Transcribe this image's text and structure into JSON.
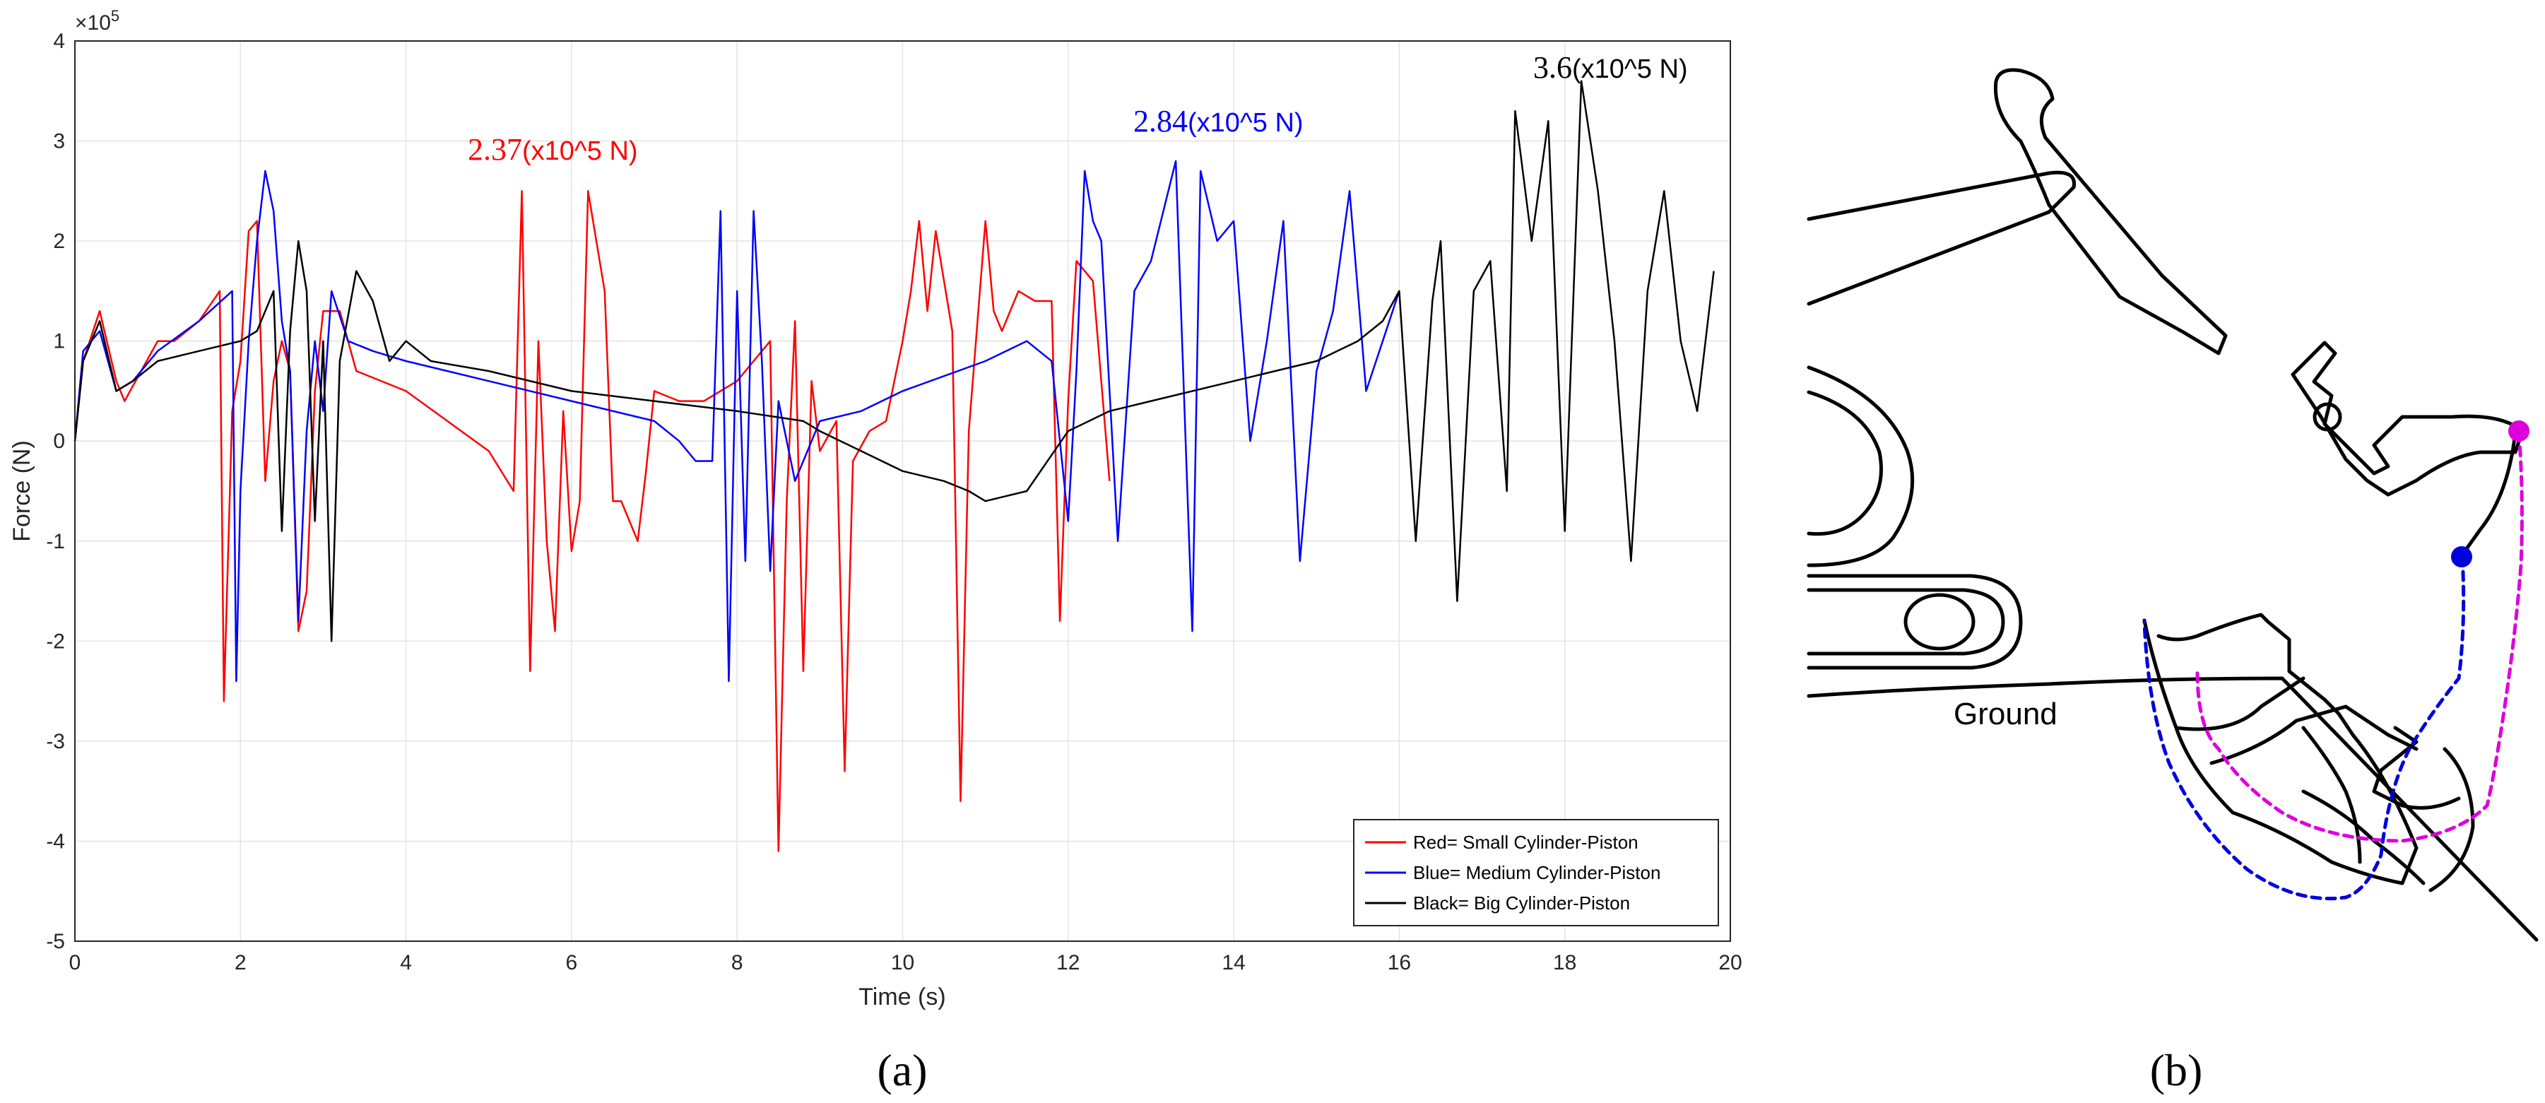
{
  "chart_data": {
    "type": "line",
    "xlabel": "Time (s)",
    "ylabel": "Force (N)",
    "xlim": [
      0,
      20
    ],
    "ylim": [
      -5,
      4
    ],
    "y_exponent_label": "×10",
    "y_exponent_power": "5",
    "grid": true,
    "xticks": [
      "0",
      "2",
      "4",
      "6",
      "8",
      "10",
      "12",
      "14",
      "16",
      "18",
      "20"
    ],
    "yticks": [
      "-5",
      "-4",
      "-3",
      "-2",
      "-1",
      "0",
      "1",
      "2",
      "3",
      "4"
    ],
    "legend_position": "bottom-right",
    "series": [
      {
        "name": "Red= Small Cylinder-Piston",
        "color": "#ff0000",
        "points": [
          [
            0,
            0
          ],
          [
            0.1,
            0.8
          ],
          [
            0.3,
            1.3
          ],
          [
            0.5,
            0.6
          ],
          [
            0.6,
            0.4
          ],
          [
            0.8,
            0.7
          ],
          [
            1.0,
            1.0
          ],
          [
            1.2,
            1.0
          ],
          [
            1.5,
            1.2
          ],
          [
            1.75,
            1.5
          ],
          [
            1.8,
            -2.6
          ],
          [
            1.9,
            0.3
          ],
          [
            2.0,
            0.8
          ],
          [
            2.1,
            2.1
          ],
          [
            2.2,
            2.2
          ],
          [
            2.3,
            -0.4
          ],
          [
            2.4,
            0.6
          ],
          [
            2.5,
            1.0
          ],
          [
            2.6,
            0.7
          ],
          [
            2.7,
            -1.9
          ],
          [
            2.8,
            -1.5
          ],
          [
            2.9,
            0.5
          ],
          [
            3.0,
            1.3
          ],
          [
            3.2,
            1.3
          ],
          [
            3.4,
            0.7
          ],
          [
            4.0,
            0.5
          ],
          [
            4.5,
            0.2
          ],
          [
            5.0,
            -0.1
          ],
          [
            5.3,
            -0.5
          ],
          [
            5.4,
            2.5
          ],
          [
            5.5,
            -2.3
          ],
          [
            5.6,
            1.0
          ],
          [
            5.7,
            -1.0
          ],
          [
            5.8,
            -1.9
          ],
          [
            5.9,
            0.3
          ],
          [
            6.0,
            -1.1
          ],
          [
            6.1,
            -0.6
          ],
          [
            6.2,
            2.5
          ],
          [
            6.3,
            2.0
          ],
          [
            6.4,
            1.5
          ],
          [
            6.5,
            -0.6
          ],
          [
            6.6,
            -0.6
          ],
          [
            6.8,
            -1.0
          ],
          [
            6.9,
            -0.3
          ],
          [
            7.0,
            0.5
          ],
          [
            7.3,
            0.4
          ],
          [
            7.6,
            0.4
          ],
          [
            8.0,
            0.6
          ],
          [
            8.2,
            0.8
          ],
          [
            8.4,
            1.0
          ],
          [
            8.5,
            -4.1
          ],
          [
            8.6,
            -0.6
          ],
          [
            8.7,
            1.2
          ],
          [
            8.8,
            -2.3
          ],
          [
            8.9,
            0.6
          ],
          [
            9.0,
            -0.1
          ],
          [
            9.2,
            0.2
          ],
          [
            9.3,
            -3.3
          ],
          [
            9.4,
            -0.2
          ],
          [
            9.6,
            0.1
          ],
          [
            9.8,
            0.2
          ],
          [
            10.0,
            1.0
          ],
          [
            10.1,
            1.5
          ],
          [
            10.2,
            2.2
          ],
          [
            10.3,
            1.3
          ],
          [
            10.4,
            2.1
          ],
          [
            10.6,
            1.1
          ],
          [
            10.7,
            -3.6
          ],
          [
            10.8,
            0.1
          ],
          [
            11.0,
            2.2
          ],
          [
            11.1,
            1.3
          ],
          [
            11.2,
            1.1
          ],
          [
            11.4,
            1.5
          ],
          [
            11.6,
            1.4
          ],
          [
            11.8,
            1.4
          ],
          [
            11.9,
            -1.8
          ],
          [
            12.0,
            0.4
          ],
          [
            12.1,
            1.8
          ],
          [
            12.3,
            1.6
          ],
          [
            12.5,
            -0.4
          ]
        ]
      },
      {
        "name": "Blue= Medium Cylinder-Piston",
        "color": "#0000ff",
        "points": [
          [
            0,
            0
          ],
          [
            0.1,
            0.9
          ],
          [
            0.3,
            1.1
          ],
          [
            0.5,
            0.5
          ],
          [
            0.7,
            0.6
          ],
          [
            1.0,
            0.9
          ],
          [
            1.5,
            1.2
          ],
          [
            1.9,
            1.5
          ],
          [
            1.95,
            -2.4
          ],
          [
            2.0,
            -0.5
          ],
          [
            2.1,
            1.0
          ],
          [
            2.2,
            2.0
          ],
          [
            2.3,
            2.7
          ],
          [
            2.4,
            2.3
          ],
          [
            2.5,
            1.2
          ],
          [
            2.6,
            0.7
          ],
          [
            2.7,
            -1.8
          ],
          [
            2.8,
            0.1
          ],
          [
            2.9,
            1.0
          ],
          [
            3.0,
            0.3
          ],
          [
            3.1,
            1.5
          ],
          [
            3.3,
            1.0
          ],
          [
            3.6,
            0.9
          ],
          [
            4.0,
            0.8
          ],
          [
            5.0,
            0.6
          ],
          [
            6.0,
            0.4
          ],
          [
            7.0,
            0.2
          ],
          [
            7.3,
            0.0
          ],
          [
            7.5,
            -0.2
          ],
          [
            7.7,
            -0.2
          ],
          [
            7.8,
            2.3
          ],
          [
            7.9,
            -2.4
          ],
          [
            8.0,
            1.5
          ],
          [
            8.1,
            -1.2
          ],
          [
            8.2,
            2.3
          ],
          [
            8.3,
            0.8
          ],
          [
            8.4,
            -1.3
          ],
          [
            8.5,
            0.4
          ],
          [
            8.7,
            -0.4
          ],
          [
            9.0,
            0.2
          ],
          [
            9.5,
            0.3
          ],
          [
            10.0,
            0.5
          ],
          [
            11.0,
            0.8
          ],
          [
            11.5,
            1.0
          ],
          [
            11.8,
            0.8
          ],
          [
            12.0,
            -0.8
          ],
          [
            12.1,
            0.7
          ],
          [
            12.2,
            2.7
          ],
          [
            12.3,
            2.2
          ],
          [
            12.4,
            2.0
          ],
          [
            12.6,
            -1.0
          ],
          [
            12.8,
            1.5
          ],
          [
            13.0,
            1.8
          ],
          [
            13.3,
            2.8
          ],
          [
            13.5,
            -1.9
          ],
          [
            13.6,
            2.7
          ],
          [
            13.8,
            2.0
          ],
          [
            14.0,
            2.2
          ],
          [
            14.2,
            0.0
          ],
          [
            14.4,
            1.0
          ],
          [
            14.6,
            2.2
          ],
          [
            14.8,
            -1.2
          ],
          [
            15.0,
            0.7
          ],
          [
            15.2,
            1.3
          ],
          [
            15.4,
            2.5
          ],
          [
            15.6,
            0.5
          ],
          [
            15.8,
            1.0
          ],
          [
            16.0,
            1.5
          ]
        ]
      },
      {
        "name": "Black= Big Cylinder-Piston",
        "color": "#000000",
        "points": [
          [
            0,
            0
          ],
          [
            0.1,
            0.8
          ],
          [
            0.3,
            1.2
          ],
          [
            0.5,
            0.5
          ],
          [
            0.7,
            0.6
          ],
          [
            1.0,
            0.8
          ],
          [
            1.5,
            0.9
          ],
          [
            2.0,
            1.0
          ],
          [
            2.2,
            1.1
          ],
          [
            2.4,
            1.5
          ],
          [
            2.5,
            -0.9
          ],
          [
            2.6,
            1.1
          ],
          [
            2.7,
            2.0
          ],
          [
            2.8,
            1.5
          ],
          [
            2.9,
            -0.8
          ],
          [
            3.0,
            1.0
          ],
          [
            3.1,
            -2.0
          ],
          [
            3.2,
            0.8
          ],
          [
            3.4,
            1.7
          ],
          [
            3.6,
            1.4
          ],
          [
            3.8,
            0.8
          ],
          [
            4.0,
            1.0
          ],
          [
            4.3,
            0.8
          ],
          [
            5.0,
            0.7
          ],
          [
            6.0,
            0.5
          ],
          [
            7.0,
            0.4
          ],
          [
            8.0,
            0.3
          ],
          [
            8.8,
            0.2
          ],
          [
            9.0,
            0.1
          ],
          [
            9.5,
            -0.1
          ],
          [
            10.0,
            -0.3
          ],
          [
            10.5,
            -0.4
          ],
          [
            10.8,
            -0.5
          ],
          [
            11.0,
            -0.6
          ],
          [
            11.5,
            -0.5
          ],
          [
            12.0,
            0.1
          ],
          [
            12.5,
            0.3
          ],
          [
            13.0,
            0.4
          ],
          [
            14.0,
            0.6
          ],
          [
            15.0,
            0.8
          ],
          [
            15.5,
            1.0
          ],
          [
            15.8,
            1.2
          ],
          [
            16.0,
            1.5
          ],
          [
            16.2,
            -1.0
          ],
          [
            16.4,
            1.4
          ],
          [
            16.5,
            2.0
          ],
          [
            16.7,
            -1.6
          ],
          [
            16.9,
            1.5
          ],
          [
            17.1,
            1.8
          ],
          [
            17.3,
            -0.5
          ],
          [
            17.4,
            3.3
          ],
          [
            17.6,
            2.0
          ],
          [
            17.8,
            3.2
          ],
          [
            18.0,
            -0.9
          ],
          [
            18.2,
            3.6
          ],
          [
            18.4,
            2.5
          ],
          [
            18.6,
            1.0
          ],
          [
            18.8,
            -1.2
          ],
          [
            19.0,
            1.5
          ],
          [
            19.2,
            2.5
          ],
          [
            19.4,
            1.0
          ],
          [
            19.6,
            0.3
          ],
          [
            19.8,
            1.7
          ]
        ]
      }
    ],
    "annotations": [
      {
        "value": "2.37",
        "unit": "(x10^5 N)",
        "color": "#ff0000"
      },
      {
        "value": "2.84",
        "unit": "(x10^5 N)",
        "color": "#0000ff"
      },
      {
        "value": "3.6",
        "unit": "(x10^5 N)",
        "color": "#000000"
      }
    ]
  },
  "panels": {
    "a_label": "(a)",
    "b_label": "(b)"
  },
  "diagram": {
    "ground_label": "Ground",
    "magenta_color": "#dd00dd",
    "blue_color": "#0000dd"
  }
}
